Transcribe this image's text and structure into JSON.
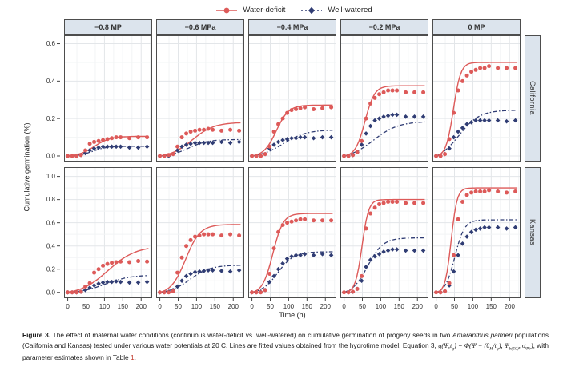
{
  "legend": {
    "series": [
      {
        "label": "Water-deficit",
        "color": "#dd5a59",
        "marker": "circle",
        "line": "solid"
      },
      {
        "label": "Well-watered",
        "color": "#303d74",
        "marker": "diamond",
        "line": "dashdot"
      }
    ]
  },
  "chart_data": {
    "type": "line",
    "title": "",
    "xlabel": "Time (h)",
    "ylabel": "Cumulative germination (%)",
    "legend_position": "top",
    "grid": true,
    "col_facets": [
      "−0.8 MP",
      "−0.6 MPa",
      "−0.4 MPa",
      "−0.2 MPa",
      "0 MP"
    ],
    "row_facets": [
      "California",
      "Kansas"
    ],
    "x_ticks": [
      0,
      50,
      100,
      150,
      200
    ],
    "xlim": [
      -10,
      230
    ],
    "row_axes": [
      {
        "facet": "California",
        "yticks": [
          0.0,
          0.2,
          0.4,
          0.6
        ],
        "ylim": [
          0,
          0.6
        ]
      },
      {
        "facet": "Kansas",
        "yticks": [
          0.0,
          0.2,
          0.4,
          0.6,
          0.8,
          1.0
        ],
        "ylim": [
          0,
          1.0
        ]
      }
    ],
    "time": [
      0,
      12,
      24,
      36,
      48,
      60,
      72,
      84,
      96,
      108,
      120,
      132,
      144,
      168,
      192,
      216
    ],
    "panels": [
      {
        "row": 0,
        "col": 0,
        "water_deficit": {
          "y": [
            0,
            0,
            0,
            0.005,
            0.03,
            0.065,
            0.075,
            0.08,
            0.085,
            0.09,
            0.095,
            0.1,
            0.1,
            0.095,
            0.1,
            0.1
          ],
          "fit": {
            "max": 0.105,
            "t50": 72,
            "s": 22
          }
        },
        "well_watered": {
          "y": [
            0,
            0,
            0,
            0.005,
            0.015,
            0.03,
            0.04,
            0.045,
            0.05,
            0.05,
            0.05,
            0.05,
            0.05,
            0.045,
            0.045,
            0.05
          ],
          "fit": {
            "max": 0.052,
            "t50": 68,
            "s": 20
          }
        }
      },
      {
        "row": 0,
        "col": 1,
        "water_deficit": {
          "y": [
            0,
            0,
            0.005,
            0.01,
            0.05,
            0.1,
            0.12,
            0.13,
            0.135,
            0.14,
            0.14,
            0.145,
            0.14,
            0.135,
            0.14,
            0.135
          ],
          "fit": {
            "max": 0.18,
            "t50": 88,
            "s": 30
          }
        },
        "well_watered": {
          "y": [
            0,
            0,
            0,
            0.01,
            0.03,
            0.05,
            0.06,
            0.065,
            0.07,
            0.07,
            0.07,
            0.07,
            0.07,
            0.075,
            0.07,
            0.075
          ],
          "fit": {
            "max": 0.088,
            "t50": 78,
            "s": 26
          }
        }
      },
      {
        "row": 0,
        "col": 2,
        "water_deficit": {
          "y": [
            0,
            0,
            0,
            0.01,
            0.05,
            0.13,
            0.17,
            0.2,
            0.23,
            0.245,
            0.25,
            0.255,
            0.26,
            0.25,
            0.255,
            0.26
          ],
          "fit": {
            "max": 0.272,
            "t50": 66,
            "s": 17
          }
        },
        "well_watered": {
          "y": [
            0,
            0,
            0,
            0.01,
            0.04,
            0.06,
            0.075,
            0.085,
            0.09,
            0.095,
            0.095,
            0.1,
            0.1,
            0.095,
            0.1,
            0.1
          ],
          "fit": {
            "max": 0.14,
            "t50": 85,
            "s": 32
          }
        }
      },
      {
        "row": 0,
        "col": 3,
        "water_deficit": {
          "y": [
            0,
            0,
            0.005,
            0.02,
            0.08,
            0.2,
            0.28,
            0.31,
            0.33,
            0.34,
            0.35,
            0.35,
            0.35,
            0.34,
            0.34,
            0.34
          ],
          "fit": {
            "max": 0.375,
            "t50": 57,
            "s": 13
          }
        },
        "well_watered": {
          "y": [
            0,
            0,
            0.005,
            0.02,
            0.06,
            0.12,
            0.16,
            0.19,
            0.2,
            0.21,
            0.215,
            0.22,
            0.22,
            0.21,
            0.21,
            0.21
          ],
          "fit": {
            "max": 0.185,
            "t50": 80,
            "s": 34
          }
        }
      },
      {
        "row": 0,
        "col": 4,
        "water_deficit": {
          "y": [
            0,
            0,
            0.01,
            0.09,
            0.23,
            0.35,
            0.4,
            0.43,
            0.45,
            0.46,
            0.47,
            0.47,
            0.48,
            0.47,
            0.47,
            0.47
          ],
          "fit": {
            "max": 0.5,
            "t50": 47,
            "s": 10
          }
        },
        "well_watered": {
          "y": [
            0,
            0,
            0.01,
            0.04,
            0.1,
            0.13,
            0.15,
            0.17,
            0.18,
            0.19,
            0.19,
            0.19,
            0.19,
            0.19,
            0.185,
            0.19
          ],
          "fit": {
            "max": 0.245,
            "t50": 62,
            "s": 28
          }
        }
      },
      {
        "row": 1,
        "col": 0,
        "water_deficit": {
          "y": [
            0,
            0,
            0,
            0.005,
            0.05,
            0.08,
            0.17,
            0.2,
            0.23,
            0.245,
            0.255,
            0.26,
            0.265,
            0.26,
            0.27,
            0.265
          ],
          "fit": {
            "max": 0.4,
            "t50": 110,
            "s": 38
          }
        },
        "well_watered": {
          "y": [
            0,
            0,
            0,
            0.005,
            0.02,
            0.04,
            0.06,
            0.075,
            0.085,
            0.09,
            0.09,
            0.095,
            0.09,
            0.085,
            0.085,
            0.09
          ],
          "fit": {
            "max": 0.15,
            "t50": 102,
            "s": 34
          }
        }
      },
      {
        "row": 1,
        "col": 1,
        "water_deficit": {
          "y": [
            0,
            0,
            0,
            0.01,
            0.17,
            0.3,
            0.4,
            0.45,
            0.48,
            0.49,
            0.5,
            0.5,
            0.5,
            0.49,
            0.5,
            0.49
          ],
          "fit": {
            "max": 0.585,
            "t50": 70,
            "s": 20
          }
        },
        "well_watered": {
          "y": [
            0,
            0,
            0.005,
            0.02,
            0.05,
            0.1,
            0.14,
            0.16,
            0.175,
            0.18,
            0.185,
            0.19,
            0.19,
            0.185,
            0.18,
            0.19
          ],
          "fit": {
            "max": 0.235,
            "t50": 82,
            "s": 28
          }
        }
      },
      {
        "row": 1,
        "col": 2,
        "water_deficit": {
          "y": [
            0,
            0,
            0,
            0.02,
            0.16,
            0.38,
            0.52,
            0.58,
            0.6,
            0.61,
            0.62,
            0.63,
            0.63,
            0.62,
            0.62,
            0.62
          ],
          "fit": {
            "max": 0.68,
            "t50": 57,
            "s": 14
          }
        },
        "well_watered": {
          "y": [
            0,
            0,
            0.005,
            0.02,
            0.09,
            0.14,
            0.2,
            0.25,
            0.29,
            0.31,
            0.32,
            0.32,
            0.33,
            0.32,
            0.33,
            0.32
          ],
          "fit": {
            "max": 0.35,
            "t50": 70,
            "s": 22
          }
        }
      },
      {
        "row": 1,
        "col": 3,
        "water_deficit": {
          "y": [
            0,
            0,
            0.005,
            0.03,
            0.14,
            0.55,
            0.68,
            0.73,
            0.76,
            0.77,
            0.78,
            0.78,
            0.78,
            0.77,
            0.77,
            0.77
          ],
          "fit": {
            "max": 0.8,
            "t50": 49,
            "s": 9
          }
        },
        "well_watered": {
          "y": [
            0,
            0,
            0.005,
            0.03,
            0.1,
            0.22,
            0.28,
            0.31,
            0.33,
            0.35,
            0.36,
            0.37,
            0.37,
            0.36,
            0.36,
            0.36
          ],
          "fit": {
            "max": 0.47,
            "t50": 64,
            "s": 21
          }
        }
      },
      {
        "row": 1,
        "col": 4,
        "water_deficit": {
          "y": [
            0,
            0,
            0.01,
            0.08,
            0.32,
            0.63,
            0.78,
            0.84,
            0.86,
            0.87,
            0.87,
            0.87,
            0.88,
            0.87,
            0.86,
            0.87
          ],
          "fit": {
            "max": 0.9,
            "t50": 41,
            "s": 8
          }
        },
        "well_watered": {
          "y": [
            0,
            0,
            0.01,
            0.06,
            0.18,
            0.32,
            0.42,
            0.48,
            0.52,
            0.54,
            0.55,
            0.56,
            0.56,
            0.56,
            0.55,
            0.56
          ],
          "fit": {
            "max": 0.625,
            "t50": 51,
            "s": 13
          }
        }
      }
    ]
  },
  "caption": {
    "segments": [
      {
        "t": "Figure 3.",
        "style": "b"
      },
      {
        "t": " The effect of maternal water conditions (continuous water-deficit vs. well-watered) on cumulative germination of progeny seeds in two ",
        "style": "n"
      },
      {
        "t": "Amaranthus palmeri",
        "style": "i"
      },
      {
        "t": " populations (California and Kansas) tested under various water potentials at 20 C. Lines are fitted values obtained from the hydrotime model, Equation 3, ",
        "style": "n"
      },
      {
        "t": "g(Ψ,t",
        "style": "math"
      },
      {
        "t": "g",
        "style": "mathsub"
      },
      {
        "t": ") = Φ(Ψ − (θ",
        "style": "math"
      },
      {
        "t": "H",
        "style": "mathsub"
      },
      {
        "t": "/t",
        "style": "math"
      },
      {
        "t": "g",
        "style": "mathsub"
      },
      {
        "t": "), Ψ",
        "style": "math"
      },
      {
        "t": "b(50)",
        "style": "mathsub"
      },
      {
        "t": ", σ",
        "style": "math"
      },
      {
        "t": "Ψb",
        "style": "mathsub"
      },
      {
        "t": ")",
        "style": "math"
      },
      {
        "t": ", with parameter estimates shown in Table ",
        "style": "n"
      },
      {
        "t": "1",
        "style": "link"
      },
      {
        "t": ".",
        "style": "n"
      }
    ]
  }
}
